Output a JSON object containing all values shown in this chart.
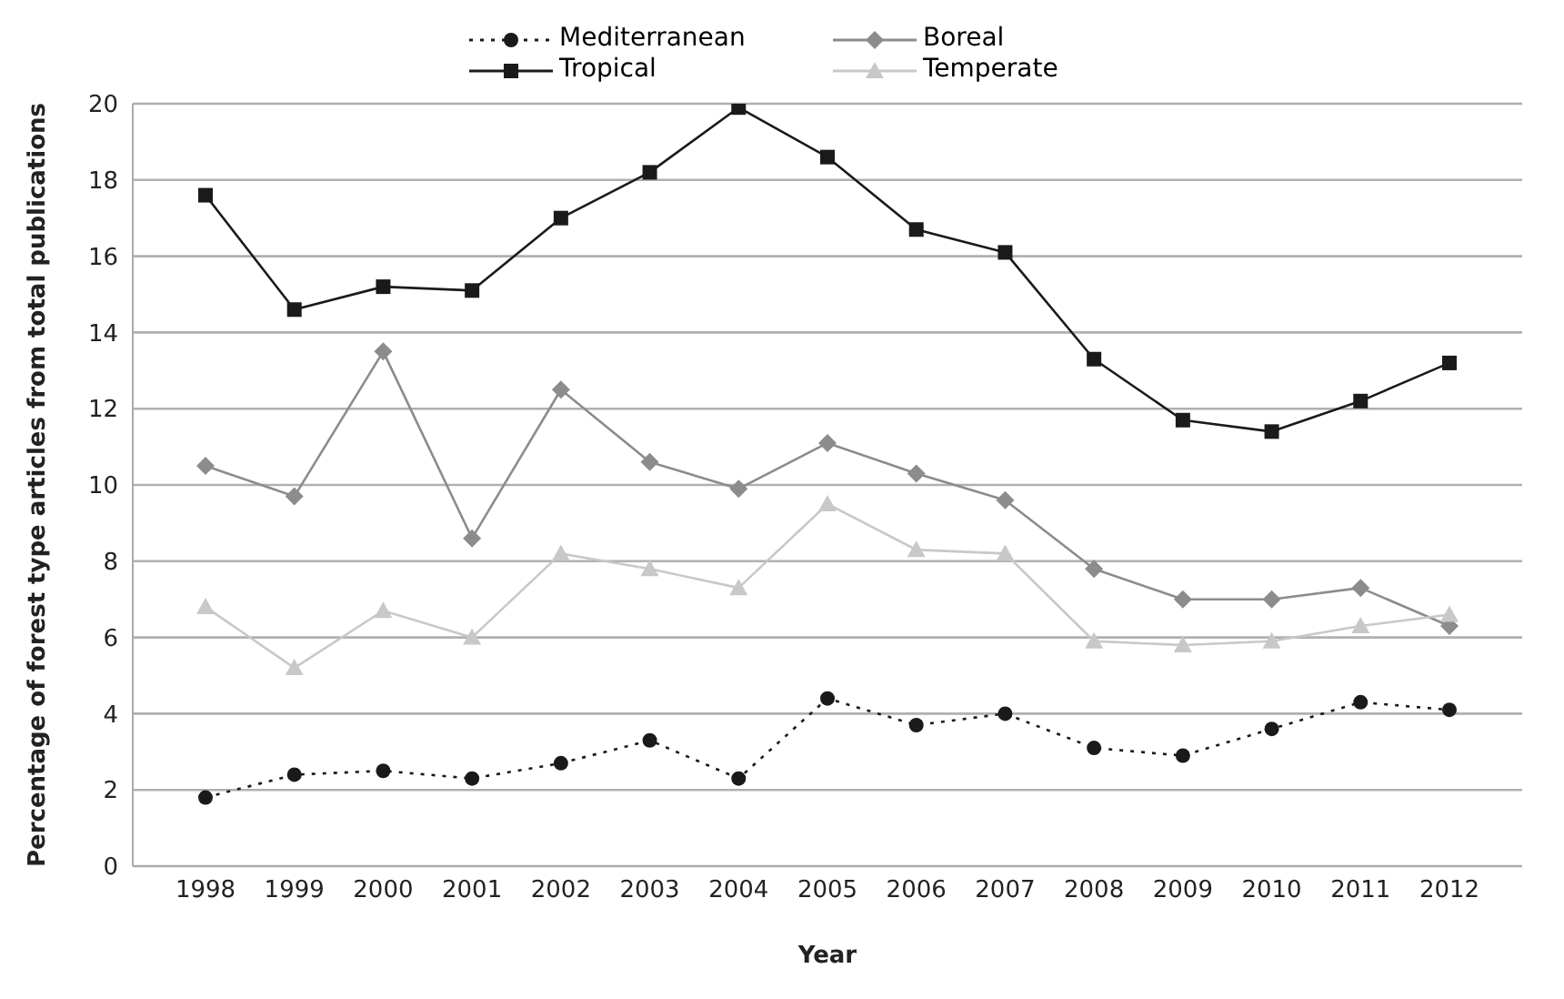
{
  "chart_data": {
    "type": "line",
    "xlabel": "Year",
    "ylabel": "Percentage of forest type articles from total publications",
    "categories": [
      "1998",
      "1999",
      "2000",
      "2001",
      "2002",
      "2003",
      "2004",
      "2005",
      "2006",
      "2007",
      "2008",
      "2009",
      "2010",
      "2011",
      "2012"
    ],
    "ylim": [
      0,
      20
    ],
    "yticks": [
      0,
      2,
      4,
      6,
      8,
      10,
      12,
      14,
      16,
      18,
      20
    ],
    "grid": "y",
    "legend": "top",
    "series": [
      {
        "name": "Mediterranean",
        "color": "#1a1a1a",
        "marker": "circle",
        "line_style": "dotted",
        "values": [
          1.8,
          2.4,
          2.5,
          2.3,
          2.7,
          3.3,
          2.3,
          4.4,
          3.7,
          4.0,
          3.1,
          2.9,
          3.6,
          4.3,
          4.1
        ]
      },
      {
        "name": "Boreal",
        "color": "#8c8c8c",
        "marker": "diamond",
        "line_style": "solid",
        "values": [
          10.5,
          9.7,
          13.5,
          8.6,
          12.5,
          10.6,
          9.9,
          11.1,
          10.3,
          9.6,
          7.8,
          7.0,
          7.0,
          7.3,
          6.3
        ]
      },
      {
        "name": "Tropical",
        "color": "#1a1a1a",
        "marker": "square",
        "line_style": "solid",
        "values": [
          17.6,
          14.6,
          15.2,
          15.1,
          17.0,
          18.2,
          19.9,
          18.6,
          16.7,
          16.1,
          13.3,
          11.7,
          11.4,
          12.2,
          13.2
        ]
      },
      {
        "name": "Temperate",
        "color": "#c8c8c8",
        "marker": "triangle",
        "line_style": "solid",
        "values": [
          6.8,
          5.2,
          6.7,
          6.0,
          8.2,
          7.8,
          7.3,
          9.5,
          8.3,
          8.2,
          5.9,
          5.8,
          5.9,
          6.3,
          6.6
        ]
      }
    ]
  }
}
